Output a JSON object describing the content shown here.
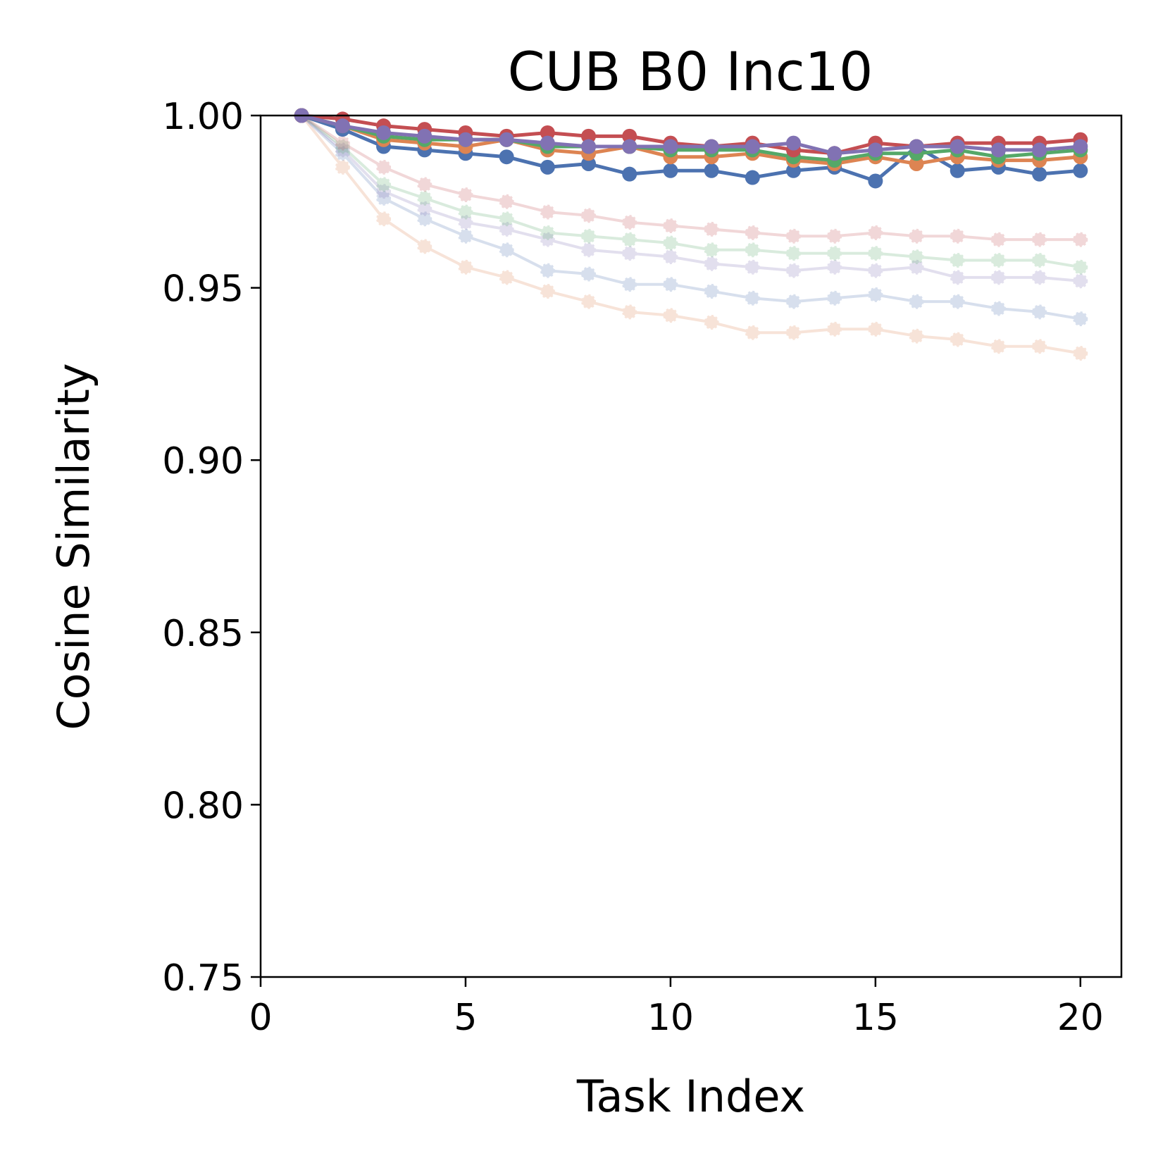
{
  "chart_data": {
    "type": "line",
    "title": "CUB B0 Inc10",
    "xlabel": "Task Index",
    "ylabel": "Cosine Similarity",
    "xlim": [
      0,
      21
    ],
    "ylim": [
      0.75,
      1.0
    ],
    "xticks": [
      0,
      5,
      10,
      15,
      20
    ],
    "xtick_labels": [
      "0",
      "5",
      "10",
      "15",
      "20"
    ],
    "yticks": [
      0.75,
      0.8,
      0.85,
      0.9,
      0.95,
      1.0
    ],
    "ytick_labels": [
      "0.75",
      "0.80",
      "0.85",
      "0.90",
      "0.95",
      "1.00"
    ],
    "grid": false,
    "legend": "none",
    "x": [
      1,
      2,
      3,
      4,
      5,
      6,
      7,
      8,
      9,
      10,
      11,
      12,
      13,
      14,
      15,
      16,
      17,
      18,
      19,
      20
    ],
    "series": [
      {
        "style": "faded",
        "color": "#dd8452",
        "values": [
          1.0,
          0.985,
          0.97,
          0.962,
          0.956,
          0.953,
          0.949,
          0.946,
          0.943,
          0.942,
          0.94,
          0.937,
          0.937,
          0.938,
          0.938,
          0.936,
          0.935,
          0.933,
          0.933,
          0.931
        ]
      },
      {
        "style": "faded",
        "color": "#4c72b0",
        "values": [
          1.0,
          0.989,
          0.976,
          0.97,
          0.965,
          0.961,
          0.955,
          0.954,
          0.951,
          0.951,
          0.949,
          0.947,
          0.946,
          0.947,
          0.948,
          0.946,
          0.946,
          0.944,
          0.943,
          0.941
        ]
      },
      {
        "style": "faded",
        "color": "#8172b3",
        "values": [
          1.0,
          0.99,
          0.978,
          0.973,
          0.969,
          0.967,
          0.964,
          0.961,
          0.96,
          0.959,
          0.957,
          0.956,
          0.955,
          0.956,
          0.955,
          0.956,
          0.953,
          0.953,
          0.953,
          0.952
        ]
      },
      {
        "style": "faded",
        "color": "#55a868",
        "values": [
          1.0,
          0.991,
          0.98,
          0.976,
          0.972,
          0.97,
          0.966,
          0.965,
          0.964,
          0.963,
          0.961,
          0.961,
          0.96,
          0.96,
          0.96,
          0.959,
          0.958,
          0.958,
          0.958,
          0.956
        ]
      },
      {
        "style": "faded",
        "color": "#c44e52",
        "values": [
          1.0,
          0.992,
          0.985,
          0.98,
          0.977,
          0.975,
          0.972,
          0.971,
          0.969,
          0.968,
          0.967,
          0.966,
          0.965,
          0.965,
          0.966,
          0.965,
          0.965,
          0.964,
          0.964,
          0.964
        ]
      },
      {
        "style": "solid",
        "color": "#4c72b0",
        "values": [
          1.0,
          0.996,
          0.991,
          0.99,
          0.989,
          0.988,
          0.985,
          0.986,
          0.983,
          0.984,
          0.984,
          0.982,
          0.984,
          0.985,
          0.981,
          0.991,
          0.984,
          0.985,
          0.983,
          0.984
        ]
      },
      {
        "style": "solid",
        "color": "#dd8452",
        "values": [
          1.0,
          0.997,
          0.993,
          0.992,
          0.991,
          0.993,
          0.99,
          0.989,
          0.991,
          0.988,
          0.988,
          0.989,
          0.987,
          0.986,
          0.988,
          0.986,
          0.988,
          0.987,
          0.987,
          0.988
        ]
      },
      {
        "style": "solid",
        "color": "#55a868",
        "values": [
          1.0,
          0.997,
          0.994,
          0.993,
          0.993,
          0.993,
          0.991,
          0.991,
          0.991,
          0.99,
          0.99,
          0.99,
          0.988,
          0.987,
          0.989,
          0.989,
          0.99,
          0.988,
          0.989,
          0.99
        ]
      },
      {
        "style": "solid",
        "color": "#c44e52",
        "values": [
          1.0,
          0.999,
          0.997,
          0.996,
          0.995,
          0.994,
          0.995,
          0.994,
          0.994,
          0.992,
          0.991,
          0.992,
          0.99,
          0.989,
          0.992,
          0.991,
          0.992,
          0.992,
          0.992,
          0.993
        ]
      },
      {
        "style": "solid",
        "color": "#8172b3",
        "values": [
          1.0,
          0.997,
          0.995,
          0.994,
          0.993,
          0.993,
          0.992,
          0.991,
          0.991,
          0.991,
          0.991,
          0.991,
          0.992,
          0.989,
          0.99,
          0.991,
          0.991,
          0.99,
          0.99,
          0.991
        ]
      }
    ]
  }
}
